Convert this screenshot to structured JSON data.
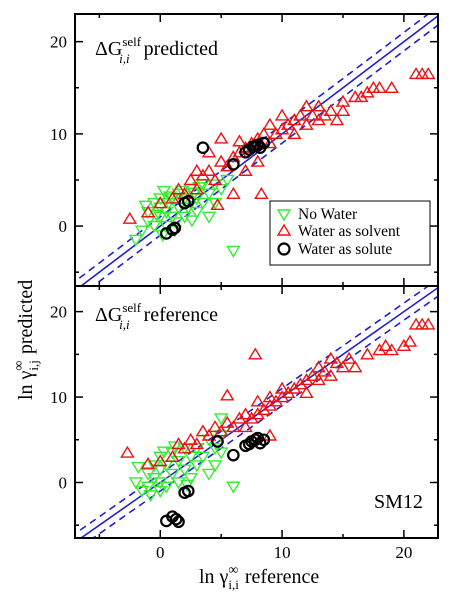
{
  "chart_data": [
    {
      "type": "scatter",
      "panel_label": {
        "main": "ΔG",
        "sup": "self",
        "sub": "i,i",
        "tail": "predicted"
      },
      "xlim": [
        -7,
        22.8
      ],
      "ylim": [
        -6.5,
        23
      ],
      "xticks": [
        0,
        10,
        20
      ],
      "yticks": [
        "0",
        "10",
        "20"
      ],
      "yticks_values": [
        0,
        10,
        20
      ],
      "xticklabels_shown": false,
      "grid": false,
      "reference_lines": {
        "solid": "y = x",
        "dashed_offset": 1
      },
      "legend": {
        "placement": "center-right",
        "entries": [
          {
            "label": "No Water",
            "marker": "triangle-down",
            "color": "#33ee33"
          },
          {
            "label": "Water as solvent",
            "marker": "triangle-up",
            "color": "#ee1111"
          },
          {
            "label": "Water as solute",
            "marker": "circle",
            "color": "#000000"
          }
        ]
      },
      "series": [
        {
          "name": "No Water",
          "points": [
            [
              -2,
              -1.5
            ],
            [
              -1.5,
              -0.5
            ],
            [
              -1,
              0.5
            ],
            [
              -1,
              1.5
            ],
            [
              -0.5,
              2.5
            ],
            [
              -0.5,
              0
            ],
            [
              0,
              1
            ],
            [
              0,
              2
            ],
            [
              0,
              3
            ],
            [
              0.3,
              3.8
            ],
            [
              0.5,
              0
            ],
            [
              0.5,
              1.5
            ],
            [
              0.7,
              2.5
            ],
            [
              1,
              3
            ],
            [
              1,
              1
            ],
            [
              1.2,
              -0.5
            ],
            [
              1.5,
              2
            ],
            [
              1.5,
              3.5
            ],
            [
              2,
              1
            ],
            [
              2,
              3
            ],
            [
              2.3,
              2
            ],
            [
              2.5,
              4
            ],
            [
              3,
              3
            ],
            [
              3,
              1.5
            ],
            [
              3.5,
              4.5
            ],
            [
              3.5,
              2.5
            ],
            [
              4,
              3.5
            ],
            [
              4.5,
              4.5
            ],
            [
              4,
              1
            ],
            [
              5,
              4
            ],
            [
              5.5,
              5
            ],
            [
              4.5,
              2.5
            ],
            [
              6,
              -2.7
            ],
            [
              -1.2,
              2.2
            ],
            [
              0.8,
              3.2
            ],
            [
              1.8,
              3.8
            ],
            [
              2.8,
              3.6
            ],
            [
              0.2,
              -1
            ],
            [
              -0.3,
              1.2
            ],
            [
              1.3,
              0.4
            ],
            [
              3.2,
              4.2
            ],
            [
              2.6,
              0.6
            ]
          ]
        },
        {
          "name": "Water as solvent",
          "points": [
            [
              -2.5,
              0.8
            ],
            [
              -1,
              1.5
            ],
            [
              0,
              2.5
            ],
            [
              1,
              3
            ],
            [
              1.5,
              4
            ],
            [
              2,
              3.5
            ],
            [
              2.5,
              5
            ],
            [
              3,
              4
            ],
            [
              3,
              6
            ],
            [
              3.5,
              5.5
            ],
            [
              4,
              6
            ],
            [
              4,
              8
            ],
            [
              4.5,
              5
            ],
            [
              5,
              7
            ],
            [
              5,
              9.5
            ],
            [
              5.5,
              6.5
            ],
            [
              6,
              7.5
            ],
            [
              6,
              3.5
            ],
            [
              6.5,
              8
            ],
            [
              7,
              6
            ],
            [
              7,
              8.5
            ],
            [
              7.5,
              9
            ],
            [
              8,
              9.5
            ],
            [
              8,
              7
            ],
            [
              8.5,
              10
            ],
            [
              9,
              9
            ],
            [
              9,
              11
            ],
            [
              9.5,
              10
            ],
            [
              10,
              10.5
            ],
            [
              10,
              12
            ],
            [
              10.5,
              11
            ],
            [
              11,
              10
            ],
            [
              11,
              11.5
            ],
            [
              11.5,
              12
            ],
            [
              12,
              11
            ],
            [
              12,
              13
            ],
            [
              12.5,
              12
            ],
            [
              13,
              11.5
            ],
            [
              13,
              13
            ],
            [
              13.5,
              12
            ],
            [
              14,
              12.5
            ],
            [
              14.5,
              11.5
            ],
            [
              15,
              12.5
            ],
            [
              15,
              13.5
            ],
            [
              16,
              14
            ],
            [
              16.5,
              14
            ],
            [
              17,
              14.5
            ],
            [
              17.5,
              15
            ],
            [
              18,
              15
            ],
            [
              19,
              15
            ],
            [
              21,
              16.5
            ],
            [
              21.5,
              16.5
            ],
            [
              22,
              16.5
            ],
            [
              4.7,
              2.3
            ],
            [
              8.3,
              3.5
            ],
            [
              6.5,
              9.2
            ]
          ]
        },
        {
          "name": "Water as solute",
          "points": [
            [
              0.5,
              -0.8
            ],
            [
              1,
              -0.4
            ],
            [
              1.2,
              -0.2
            ],
            [
              2,
              2.5
            ],
            [
              2.3,
              2.7
            ],
            [
              3.5,
              8.5
            ],
            [
              6,
              6.7
            ],
            [
              7,
              8
            ],
            [
              7.3,
              8.3
            ],
            [
              7.6,
              8.6
            ],
            [
              7.8,
              8.7
            ],
            [
              8,
              8.8
            ],
            [
              8.2,
              8.5
            ],
            [
              8.5,
              9
            ]
          ]
        }
      ]
    },
    {
      "type": "scatter",
      "panel_label": {
        "main": "ΔG",
        "sup": "self",
        "sub": "i,i",
        "tail": "reference"
      },
      "annotation": "SM12",
      "xlim": [
        -7,
        22.8
      ],
      "ylim": [
        -6.5,
        23
      ],
      "xticks": [
        0,
        10,
        20
      ],
      "xticklabels": [
        "0",
        "10",
        "20"
      ],
      "yticks": [
        "0",
        "10",
        "20"
      ],
      "yticks_values": [
        0,
        10,
        20
      ],
      "grid": false,
      "reference_lines": {
        "solid": "y = x",
        "dashed_offset": 1
      },
      "series": [
        {
          "name": "No Water",
          "points": [
            [
              -2,
              0
            ],
            [
              -1.5,
              -1
            ],
            [
              -1,
              1
            ],
            [
              -1,
              -0.5
            ],
            [
              -0.5,
              2
            ],
            [
              -0.5,
              0.5
            ],
            [
              0,
              0
            ],
            [
              0,
              -1
            ],
            [
              0,
              3
            ],
            [
              0,
              1.5
            ],
            [
              0.5,
              2
            ],
            [
              0.5,
              -0.5
            ],
            [
              1,
              3.5
            ],
            [
              1,
              1
            ],
            [
              1.5,
              0
            ],
            [
              1.5,
              2.5
            ],
            [
              2,
              4
            ],
            [
              2,
              1.5
            ],
            [
              2.5,
              3
            ],
            [
              2.5,
              0.5
            ],
            [
              3,
              4
            ],
            [
              3,
              2
            ],
            [
              3.5,
              3
            ],
            [
              4,
              5
            ],
            [
              4,
              1
            ],
            [
              4.5,
              4
            ],
            [
              4.5,
              2
            ],
            [
              5,
              3.5
            ],
            [
              5,
              5.5
            ],
            [
              5,
              7.5
            ],
            [
              6,
              -0.5
            ],
            [
              -1.8,
              1.8
            ],
            [
              0.3,
              3.6
            ],
            [
              1.2,
              4.2
            ],
            [
              -0.8,
              -1.5
            ],
            [
              2.2,
              -0.3
            ]
          ]
        },
        {
          "name": "Water as solvent",
          "points": [
            [
              -2.7,
              3.5
            ],
            [
              -1,
              2.2
            ],
            [
              0,
              2.5
            ],
            [
              1,
              3
            ],
            [
              1.5,
              4.5
            ],
            [
              2,
              4
            ],
            [
              2.5,
              5
            ],
            [
              3,
              4.5
            ],
            [
              3.5,
              6
            ],
            [
              4,
              5.5
            ],
            [
              4.5,
              6.5
            ],
            [
              5,
              6
            ],
            [
              5.5,
              7
            ],
            [
              6,
              6.5
            ],
            [
              6.5,
              7.5
            ],
            [
              7,
              6.5
            ],
            [
              7,
              8
            ],
            [
              7.5,
              7.5
            ],
            [
              8,
              8
            ],
            [
              8,
              9.5
            ],
            [
              8.5,
              8.5
            ],
            [
              9,
              9
            ],
            [
              9,
              10
            ],
            [
              9.5,
              9.5
            ],
            [
              10,
              10
            ],
            [
              10,
              11
            ],
            [
              10.5,
              10.5
            ],
            [
              11,
              11
            ],
            [
              11.5,
              11.5
            ],
            [
              12,
              12
            ],
            [
              12,
              10.5
            ],
            [
              12.5,
              12.5
            ],
            [
              13,
              12
            ],
            [
              13,
              13.5
            ],
            [
              13.5,
              13
            ],
            [
              14,
              12.5
            ],
            [
              14,
              14.5
            ],
            [
              14.5,
              14
            ],
            [
              15,
              13.5
            ],
            [
              15.5,
              14.5
            ],
            [
              16,
              13.5
            ],
            [
              17,
              15
            ],
            [
              18,
              15.5
            ],
            [
              18.5,
              16
            ],
            [
              19,
              15.5
            ],
            [
              20,
              16
            ],
            [
              20.5,
              16.5
            ],
            [
              21,
              18.5
            ],
            [
              21.5,
              18.5
            ],
            [
              22,
              18.5
            ],
            [
              7.8,
              15
            ],
            [
              5.5,
              10.2
            ],
            [
              9,
              5.5
            ]
          ]
        },
        {
          "name": "Water as solute",
          "points": [
            [
              0.5,
              -4.5
            ],
            [
              1,
              -4
            ],
            [
              1.3,
              -4.3
            ],
            [
              1.5,
              -4.6
            ],
            [
              2,
              -1.2
            ],
            [
              2.3,
              -1
            ],
            [
              4.7,
              4.8
            ],
            [
              6,
              3.2
            ],
            [
              7,
              4.3
            ],
            [
              7.3,
              4.5
            ],
            [
              7.5,
              4.8
            ],
            [
              7.8,
              5
            ],
            [
              8,
              5.2
            ],
            [
              8.2,
              4.6
            ],
            [
              8.5,
              5
            ]
          ]
        }
      ]
    }
  ],
  "axes": {
    "xlabel": {
      "main": "ln γ",
      "sup": "∞",
      "sub": "i,i",
      "tail": "reference"
    },
    "ylabel": {
      "main": "ln γ",
      "sup": "∞",
      "sub": "i,j",
      "tail": "predicted"
    }
  },
  "colors": {
    "no_water": "#33ee33",
    "water_solvent": "#ee1111",
    "water_solute": "#000000",
    "reference_line": "#1f1fd0"
  }
}
